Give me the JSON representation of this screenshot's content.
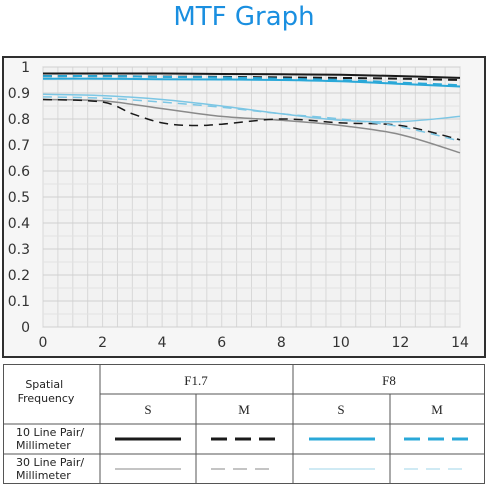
{
  "title": "MTF Graph",
  "colors": {
    "title": "#1a8fe0",
    "black": "#1a1a1a",
    "blue": "#2aa8d8",
    "gray": "#8a8a8a",
    "light_blue": "#7cc6e4"
  },
  "chart_data": {
    "type": "line",
    "xlim": [
      0,
      14
    ],
    "ylim": [
      0,
      1
    ],
    "x_ticks": [
      0,
      2,
      4,
      6,
      8,
      10,
      12,
      14
    ],
    "y_ticks": [
      0,
      0.1,
      0.2,
      0.3,
      0.4,
      0.5,
      0.6,
      0.7,
      0.8,
      0.9,
      1
    ],
    "x_tick_labels": [
      "0",
      "2",
      "4",
      "6",
      "8",
      "10",
      "12",
      "14"
    ],
    "y_tick_labels": [
      "0",
      "0.1",
      "0.2",
      "0.3",
      "0.4",
      "0.5",
      "0.6",
      "0.7",
      "0.8",
      "0.9",
      "1"
    ],
    "grid": true,
    "series": [
      {
        "aperture": "F1.7",
        "frequency": "10 Line Pair/ Millimeter",
        "direction": "S",
        "color": "black",
        "dash": "solid",
        "x": [
          0,
          2,
          4,
          6,
          8,
          10,
          12,
          14
        ],
        "y": [
          0.975,
          0.975,
          0.975,
          0.973,
          0.972,
          0.97,
          0.965,
          0.958
        ]
      },
      {
        "aperture": "F1.7",
        "frequency": "10 Line Pair/ Millimeter",
        "direction": "M",
        "color": "black",
        "dash": "dashed",
        "x": [
          0,
          2,
          4,
          6,
          8,
          10,
          12,
          14
        ],
        "y": [
          0.965,
          0.965,
          0.963,
          0.962,
          0.96,
          0.958,
          0.955,
          0.95
        ]
      },
      {
        "aperture": "F8",
        "frequency": "10 Line Pair/ Millimeter",
        "direction": "S",
        "color": "blue",
        "dash": "solid",
        "x": [
          0,
          2,
          4,
          6,
          8,
          10,
          12,
          14
        ],
        "y": [
          0.955,
          0.955,
          0.953,
          0.952,
          0.95,
          0.945,
          0.935,
          0.925
        ]
      },
      {
        "aperture": "F8",
        "frequency": "10 Line Pair/ Millimeter",
        "direction": "M",
        "color": "blue",
        "dash": "dashed",
        "x": [
          0,
          2,
          4,
          6,
          8,
          10,
          12,
          14
        ],
        "y": [
          0.965,
          0.965,
          0.962,
          0.96,
          0.955,
          0.95,
          0.94,
          0.93
        ]
      },
      {
        "aperture": "F1.7",
        "frequency": "30 Line Pair/ Millimeter",
        "direction": "S",
        "color": "gray",
        "dash": "solid",
        "x": [
          0,
          2,
          4,
          6,
          8,
          10,
          12,
          14
        ],
        "y": [
          0.875,
          0.87,
          0.84,
          0.81,
          0.795,
          0.775,
          0.74,
          0.67
        ]
      },
      {
        "aperture": "F1.7",
        "frequency": "30 Line Pair/ Millimeter",
        "direction": "M",
        "color": "black",
        "dash": "dashed",
        "x": [
          0,
          2,
          3,
          4,
          5,
          6,
          8,
          10,
          12,
          14
        ],
        "y": [
          0.875,
          0.865,
          0.82,
          0.785,
          0.775,
          0.78,
          0.8,
          0.785,
          0.775,
          0.72
        ]
      },
      {
        "aperture": "F8",
        "frequency": "30 Line Pair/ Millimeter",
        "direction": "S",
        "color": "light_blue",
        "dash": "solid",
        "x": [
          0,
          2,
          4,
          6,
          8,
          10,
          12,
          14
        ],
        "y": [
          0.895,
          0.89,
          0.875,
          0.85,
          0.82,
          0.795,
          0.79,
          0.81
        ]
      },
      {
        "aperture": "F8",
        "frequency": "30 Line Pair/ Millimeter",
        "direction": "M",
        "color": "light_blue",
        "dash": "dashed",
        "x": [
          0,
          2,
          4,
          6,
          8,
          10,
          12,
          14
        ],
        "y": [
          0.885,
          0.88,
          0.865,
          0.845,
          0.82,
          0.8,
          0.77,
          0.715
        ]
      }
    ]
  },
  "legend": {
    "row_header": "Spatial Frequency",
    "row_header_lines": [
      "Spatial",
      "Frequency"
    ],
    "apertures": [
      "F1.7",
      "F8"
    ],
    "directions": [
      "S",
      "M",
      "S",
      "M"
    ],
    "rows": [
      {
        "label": "10 Line Pair/ Millimeter",
        "label_lines": [
          "10 Line Pair/",
          "Millimeter"
        ]
      },
      {
        "label": "30 Line Pair/ Millimeter",
        "label_lines": [
          "30 Line Pair/",
          "Millimeter"
        ]
      }
    ]
  }
}
